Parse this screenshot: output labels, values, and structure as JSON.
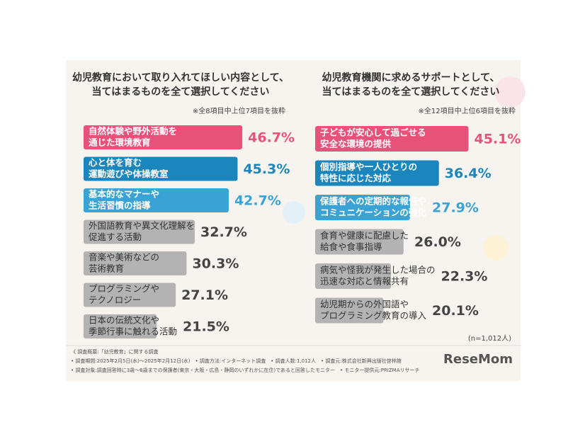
{
  "chart_data": [
    {
      "type": "bar",
      "title": [
        "幼児教育において取り入れてほしい内容として、",
        "当てはまるものを全て選択してください"
      ],
      "note": "※全8項目中上位7項目を抜粋",
      "categories": [
        [
          "自然体験や野外活動を",
          "通じた環境教育"
        ],
        [
          "心と体を育む",
          "運動遊びや体操教室"
        ],
        [
          "基本的なマナーや",
          "生活習慣の指導"
        ],
        [
          "外国語教育や異文化理解を",
          "促進する活動"
        ],
        [
          "音楽や美術などの",
          "芸術教育"
        ],
        [
          "プログラミングや",
          "テクノロジー"
        ],
        [
          "日本の伝統文化や",
          "季節行事に触れる活動"
        ]
      ],
      "values": [
        46.7,
        45.3,
        42.7,
        32.7,
        30.3,
        27.1,
        21.5
      ],
      "value_labels": [
        "46.7%",
        "45.3%",
        "42.7%",
        "32.7%",
        "30.3%",
        "27.1%",
        "21.5%"
      ],
      "colors": [
        "#e8527a",
        "#1b86bd",
        "#3aa3d6",
        "#b3b3b3",
        "#b3b3b3",
        "#b3b3b3",
        "#b3b3b3"
      ]
    },
    {
      "type": "bar",
      "title": [
        "幼児教育機関に求めるサポートとして、",
        "当てはまるものを全て選択してください"
      ],
      "note": "※全12項目中上位6項目を抜粋",
      "categories": [
        [
          "子どもが安心して過ごせる",
          "安全な環境の提供"
        ],
        [
          "個別指導や一人ひとりの",
          "特性に応じた対応"
        ],
        [
          "保護者への定期的な報告や",
          "コミュニケーションの強化"
        ],
        [
          "食育や健康に配慮した",
          "給食や食事指導"
        ],
        [
          "病気や怪我が発生した場合の",
          "迅速な対応と情報共有"
        ],
        [
          "幼児期からの外国語や",
          "プログラミング教育の導入"
        ]
      ],
      "values": [
        45.1,
        36.4,
        27.9,
        26.0,
        22.3,
        20.1
      ],
      "value_labels": [
        "45.1%",
        "36.4%",
        "27.9%",
        "26.0%",
        "22.3%",
        "20.1%"
      ],
      "colors": [
        "#e8527a",
        "#1b86bd",
        "#3aa3d6",
        "#b3b3b3",
        "#b3b3b3",
        "#b3b3b3"
      ]
    }
  ],
  "sample_size": "(n=1,012人)",
  "footer": [
    "《 調査概要:「幼児教育」に関する調査",
    "• 調査期間:2025年2月5日(水)〜2025年2月12日(水)　• 調査方法:インターネット調査　• 調査人数:1,012人　• 調査元:株式会社新興出版社啓林館",
    "• 調査対象:調査回答時に3歳〜6歳までの保護者(東京・大阪・広島・静岡のいずれかに在住)であると回答したモニター　• モニター提供元:PRIZMAリサーチ"
  ],
  "logo": "ReseMom"
}
